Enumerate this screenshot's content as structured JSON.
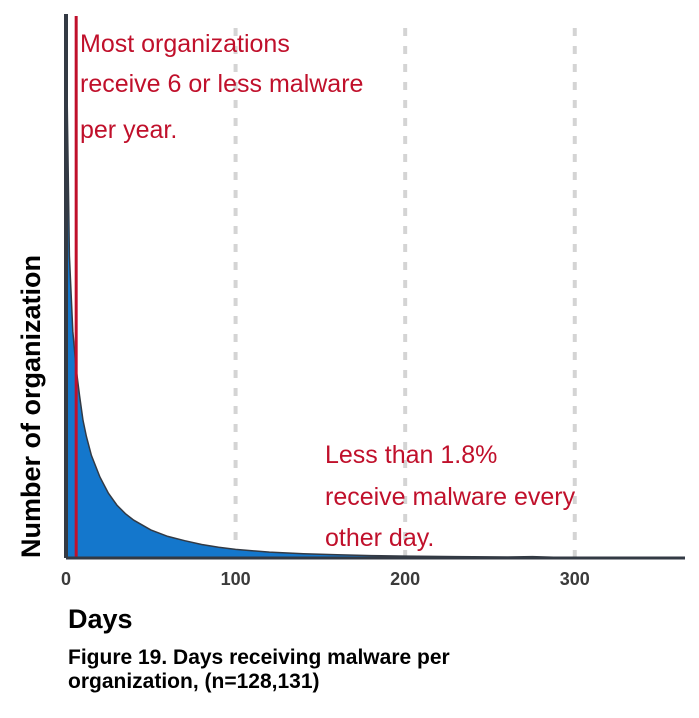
{
  "chart_data": {
    "type": "area",
    "xlabel": "Days",
    "ylabel": "Number of organization",
    "xlim": [
      0,
      365
    ],
    "xticks": [
      0,
      100,
      200,
      300
    ],
    "grid": "vertical dashed at x ticks",
    "series": [
      {
        "x": [
          0,
          2,
          4,
          6,
          8,
          10,
          12,
          15,
          20,
          25,
          30,
          35,
          40,
          50,
          60,
          70,
          80,
          90,
          100,
          120,
          140,
          160,
          180,
          200,
          230,
          260,
          275,
          290,
          320,
          365
        ],
        "y": [
          1.0,
          0.56,
          0.42,
          0.35,
          0.3,
          0.255,
          0.225,
          0.19,
          0.15,
          0.12,
          0.098,
          0.082,
          0.07,
          0.052,
          0.04,
          0.032,
          0.025,
          0.02,
          0.016,
          0.011,
          0.008,
          0.006,
          0.0045,
          0.0035,
          0.0025,
          0.0018,
          0.0025,
          0.0012,
          0.0008,
          0.0004
        ]
      }
    ],
    "reference_line": {
      "x": 6
    },
    "annotations": [
      {
        "lines": [
          "Most organizations",
          "receive 6 or less malware",
          "per year."
        ]
      },
      {
        "lines": [
          "Less than 1.8%",
          "receive malware every",
          "other day."
        ]
      }
    ],
    "colors": {
      "fill": "#1477cc",
      "axis": "#333a44",
      "grid": "#d4d4d4",
      "annotation": "#c0102b"
    }
  },
  "caption": {
    "line1": "Figure 19.  Days receiving malware per",
    "line2": "organization, (n=128,131)"
  }
}
